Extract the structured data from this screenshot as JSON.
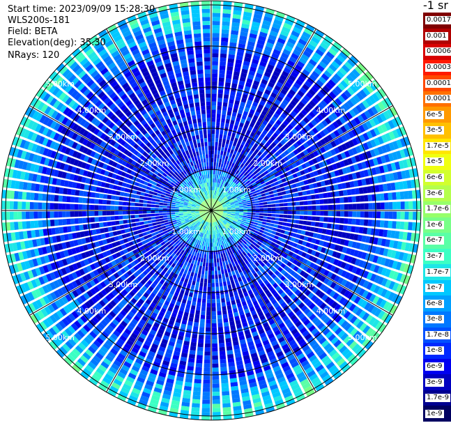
{
  "info": {
    "start_time": "Start time: 2023/09/09 15:28:30",
    "instrument": "WLS200s-181",
    "field": "Field: BETA",
    "elevation": "Elevation(deg): 35.30",
    "nrays": "NRays: 120"
  },
  "colorbar": {
    "title": "-1 sr",
    "labels": [
      "0.0017",
      "0.001",
      "0.0006",
      "0.0003",
      "0.00017",
      "0.0001",
      "6e-5",
      "3e-5",
      "1.7e-5",
      "1e-5",
      "6e-6",
      "3e-6",
      "1.7e-6",
      "1e-6",
      "6e-7",
      "3e-7",
      "1.7e-7",
      "1e-7",
      "6e-8",
      "3e-8",
      "1.7e-8",
      "1e-8",
      "6e-9",
      "3e-9",
      "1.7e-9",
      "1e-9"
    ],
    "colors": [
      "#800000",
      "#b00000",
      "#d80000",
      "#ff1a00",
      "#ff4800",
      "#ff7000",
      "#ff9900",
      "#ffc000",
      "#ffe600",
      "#f0ff10",
      "#d2ff2e",
      "#b4ff4c",
      "#96ff6a",
      "#78ff88",
      "#5affa6",
      "#3cffc4",
      "#1ee6e6",
      "#00c8ff",
      "#00a0ff",
      "#0078ff",
      "#0050ff",
      "#0028ff",
      "#0000f0",
      "#0000c0",
      "#000090",
      "#000060"
    ]
  },
  "chart_data": {
    "type": "heatmap",
    "projection": "polar-ppi",
    "field": "BETA",
    "units": "sr-1",
    "n_rays": 120,
    "elevation_deg": 35.3,
    "range_rings": [
      "1.00km",
      "2.00km",
      "3.00km",
      "4.00km",
      "5.00km"
    ],
    "range_ring_km": [
      1,
      2,
      3,
      4,
      5
    ],
    "max_range_km": 5.1,
    "spokes_deg": [
      0,
      30,
      60,
      90,
      120,
      150,
      180,
      210,
      240,
      270,
      300,
      330
    ],
    "value_range": [
      1e-09,
      0.0017
    ],
    "typical_value_by_range_km": [
      {
        "range_km": 0.5,
        "value": "1.7e-7"
      },
      {
        "range_km": 1.5,
        "value": "3e-8"
      },
      {
        "range_km": 2.5,
        "value": "3e-8"
      },
      {
        "range_km": 3.5,
        "value": "3e-8"
      },
      {
        "range_km": 4.5,
        "value": "1e-7"
      },
      {
        "range_km": 5.0,
        "value": "1e-6"
      }
    ]
  }
}
